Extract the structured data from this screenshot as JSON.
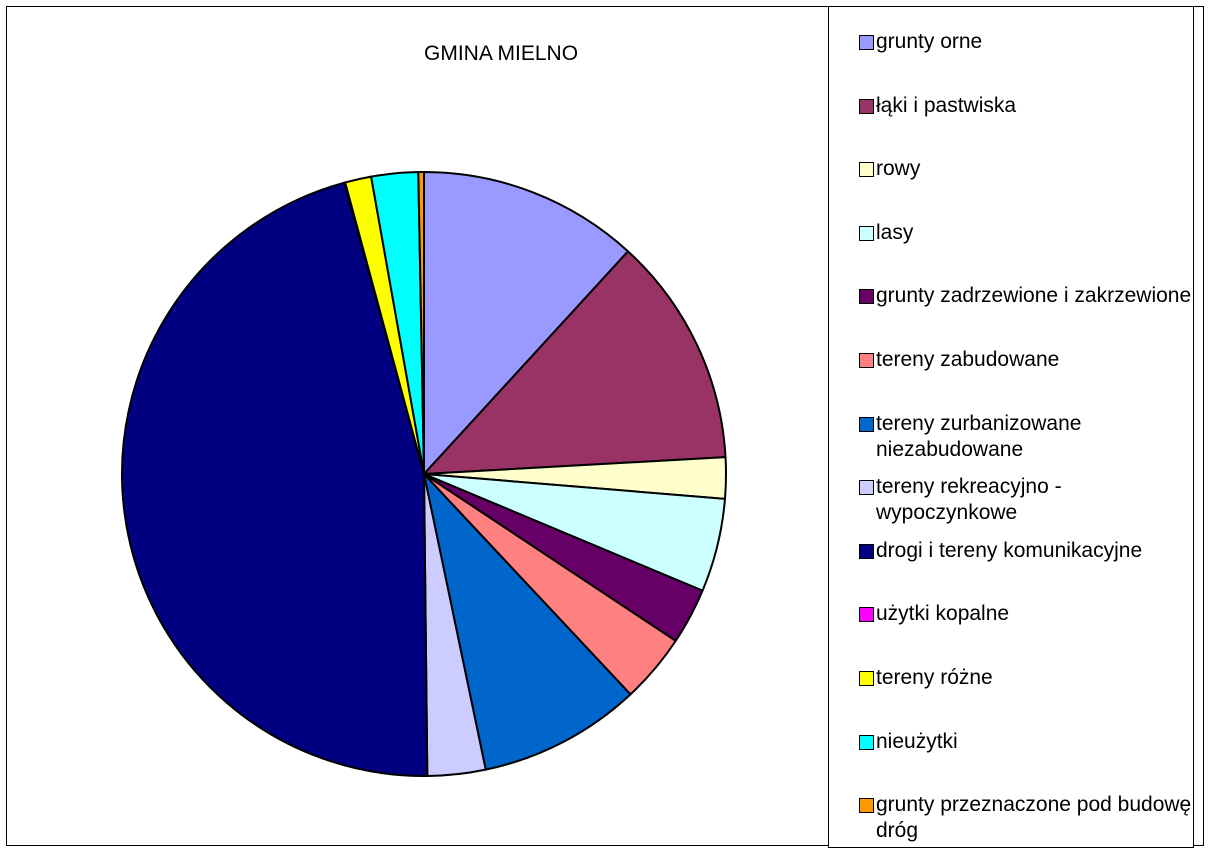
{
  "chart_data": {
    "type": "pie",
    "title": "GMINA MIELNO",
    "legend_position": "right",
    "series": [
      {
        "label": "grunty orne",
        "value": 11.8,
        "color": "#9999FF"
      },
      {
        "label": "łąki i pastwiska",
        "value": 12.3,
        "color": "#993366"
      },
      {
        "label": "rowy",
        "value": 2.2,
        "color": "#FFFFCC"
      },
      {
        "label": "lasy",
        "value": 5.0,
        "color": "#CCFFFF"
      },
      {
        "label": "grunty zadrzewione i zakrzewione",
        "value": 3.0,
        "color": "#660066"
      },
      {
        "label": "tereny zabudowane",
        "value": 3.7,
        "color": "#FF8080"
      },
      {
        "label": "tereny zurbanizowane niezabudowane",
        "value": 8.7,
        "color": "#0066CC"
      },
      {
        "label": "tereny rekreacyjno - wypoczynkowe",
        "value": 3.1,
        "color": "#CCCCFF"
      },
      {
        "label": "drogi i tereny komunikacyjne",
        "value": 45.9,
        "color": "#000080"
      },
      {
        "label": "użytki kopalne",
        "value": 0.05,
        "color": "#FF00FF"
      },
      {
        "label": "tereny różne",
        "value": 1.4,
        "color": "#FFFF00"
      },
      {
        "label": "nieużytki",
        "value": 2.5,
        "color": "#00FFFF"
      },
      {
        "label": "grunty przeznaczone pod budowę dróg",
        "value": 0.3,
        "color": "#FF9900"
      }
    ]
  }
}
